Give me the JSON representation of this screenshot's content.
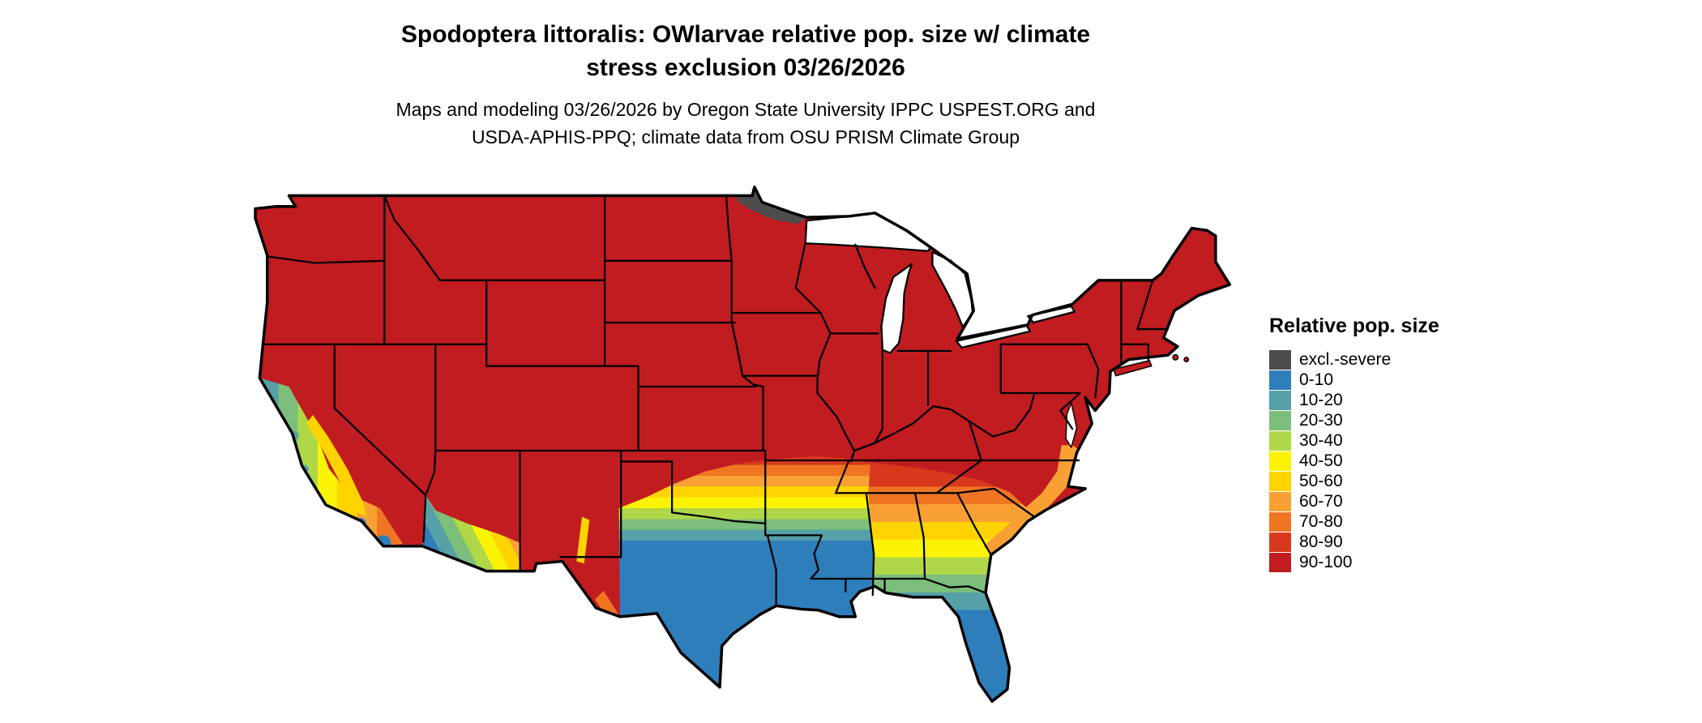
{
  "title": {
    "line1": "Spodoptera littoralis: OWlarvae relative pop. size w/ climate",
    "line2": "stress exclusion 03/26/2026"
  },
  "subtitle": {
    "line1": "Maps and modeling 03/26/2026 by Oregon State University IPPC USPEST.ORG and",
    "line2": "USDA-APHIS-PPQ; climate data from OSU PRISM Climate Group"
  },
  "legend": {
    "title": "Relative pop. size",
    "items": [
      {
        "label": "excl.-severe",
        "color": "#4D4D4D"
      },
      {
        "label": "0-10",
        "color": "#2E7EBB"
      },
      {
        "label": "10-20",
        "color": "#56A0A8"
      },
      {
        "label": "20-30",
        "color": "#7CBE7C"
      },
      {
        "label": "30-40",
        "color": "#AFD748"
      },
      {
        "label": "40-50",
        "color": "#FBF306"
      },
      {
        "label": "50-60",
        "color": "#FFD300"
      },
      {
        "label": "60-70",
        "color": "#F9A035"
      },
      {
        "label": "70-80",
        "color": "#EF7522"
      },
      {
        "label": "80-90",
        "color": "#D8391D"
      },
      {
        "label": "90-100",
        "color": "#C11C20"
      }
    ]
  }
}
